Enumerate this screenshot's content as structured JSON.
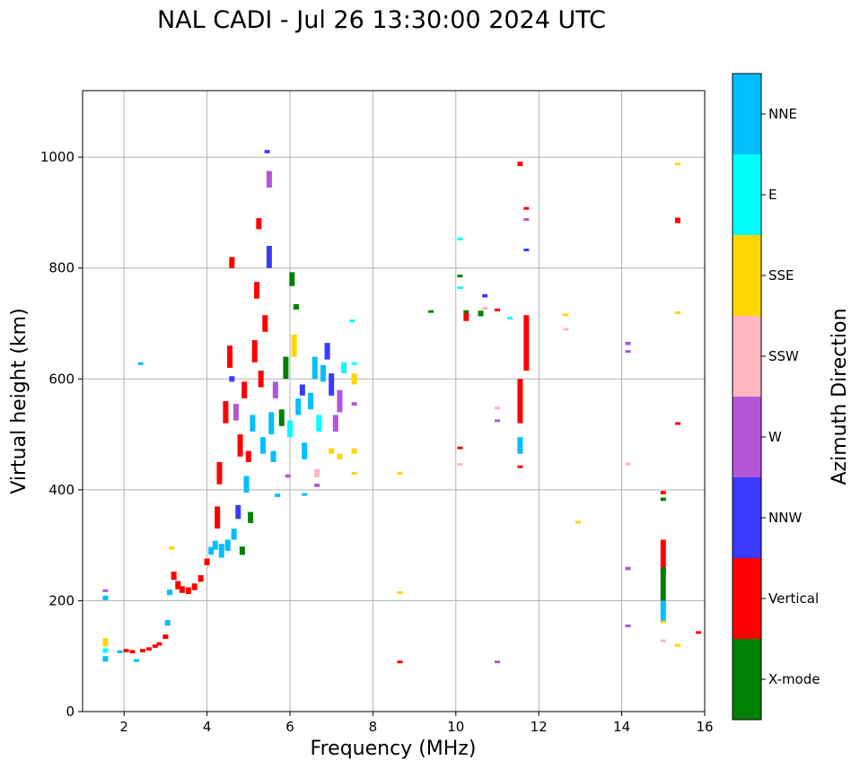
{
  "chart_data": {
    "type": "scatter",
    "title": "NAL CADI - Jul 26 13:30:00 2024 UTC",
    "xlabel": "Frequency (MHz)",
    "ylabel": "Virtual height (km)",
    "xlim": [
      1,
      16
    ],
    "ylim": [
      0,
      1120
    ],
    "xticks": [
      2,
      4,
      6,
      8,
      10,
      12,
      14,
      16
    ],
    "yticks": [
      0,
      200,
      400,
      600,
      800,
      1000
    ],
    "grid": true,
    "colorbar": {
      "title": "Azimuth Direction",
      "categories": [
        {
          "name": "X-mode",
          "color": "#008000"
        },
        {
          "name": "Vertical",
          "color": "#ff0000"
        },
        {
          "name": "NNW",
          "color": "#3a3aff"
        },
        {
          "name": "W",
          "color": "#b355d9"
        },
        {
          "name": "SSW",
          "color": "#ffb6c1"
        },
        {
          "name": "SSE",
          "color": "#ffd700"
        },
        {
          "name": "E",
          "color": "#00ffff"
        },
        {
          "name": "NNE",
          "color": "#00bfff"
        }
      ]
    },
    "segments": [
      {
        "x": 1.55,
        "y": 95,
        "h": 10,
        "dir": "NNE"
      },
      {
        "x": 1.55,
        "y": 110,
        "h": 8,
        "dir": "E"
      },
      {
        "x": 1.55,
        "y": 125,
        "h": 15,
        "dir": "SSE"
      },
      {
        "x": 1.55,
        "y": 205,
        "h": 8,
        "dir": "NNE"
      },
      {
        "x": 1.55,
        "y": 218,
        "h": 5,
        "dir": "W"
      },
      {
        "x": 1.9,
        "y": 108,
        "h": 5,
        "dir": "NNE"
      },
      {
        "x": 2.05,
        "y": 110,
        "h": 6,
        "dir": "Vertical"
      },
      {
        "x": 2.2,
        "y": 108,
        "h": 6,
        "dir": "Vertical"
      },
      {
        "x": 2.3,
        "y": 92,
        "h": 5,
        "dir": "NNE"
      },
      {
        "x": 2.4,
        "y": 628,
        "h": 4,
        "dir": "NNE"
      },
      {
        "x": 2.45,
        "y": 110,
        "h": 6,
        "dir": "Vertical"
      },
      {
        "x": 2.6,
        "y": 113,
        "h": 6,
        "dir": "Vertical"
      },
      {
        "x": 2.75,
        "y": 118,
        "h": 6,
        "dir": "Vertical"
      },
      {
        "x": 2.85,
        "y": 122,
        "h": 6,
        "dir": "Vertical"
      },
      {
        "x": 3.0,
        "y": 135,
        "h": 8,
        "dir": "Vertical"
      },
      {
        "x": 3.05,
        "y": 160,
        "h": 10,
        "dir": "NNE"
      },
      {
        "x": 3.1,
        "y": 215,
        "h": 10,
        "dir": "NNE"
      },
      {
        "x": 3.15,
        "y": 295,
        "h": 6,
        "dir": "SSE"
      },
      {
        "x": 3.2,
        "y": 245,
        "h": 15,
        "dir": "Vertical"
      },
      {
        "x": 3.3,
        "y": 228,
        "h": 15,
        "dir": "Vertical"
      },
      {
        "x": 3.4,
        "y": 220,
        "h": 12,
        "dir": "Vertical"
      },
      {
        "x": 3.55,
        "y": 218,
        "h": 12,
        "dir": "Vertical"
      },
      {
        "x": 3.7,
        "y": 225,
        "h": 12,
        "dir": "Vertical"
      },
      {
        "x": 3.85,
        "y": 240,
        "h": 12,
        "dir": "Vertical"
      },
      {
        "x": 4.0,
        "y": 270,
        "h": 12,
        "dir": "Vertical"
      },
      {
        "x": 4.1,
        "y": 290,
        "h": 14,
        "dir": "NNE"
      },
      {
        "x": 4.2,
        "y": 300,
        "h": 16,
        "dir": "NNE"
      },
      {
        "x": 4.25,
        "y": 350,
        "h": 40,
        "dir": "Vertical"
      },
      {
        "x": 4.3,
        "y": 430,
        "h": 40,
        "dir": "Vertical"
      },
      {
        "x": 4.35,
        "y": 290,
        "h": 25,
        "dir": "NNE"
      },
      {
        "x": 4.45,
        "y": 540,
        "h": 40,
        "dir": "Vertical"
      },
      {
        "x": 4.5,
        "y": 300,
        "h": 20,
        "dir": "NNE"
      },
      {
        "x": 4.55,
        "y": 640,
        "h": 40,
        "dir": "Vertical"
      },
      {
        "x": 4.6,
        "y": 810,
        "h": 20,
        "dir": "Vertical"
      },
      {
        "x": 4.6,
        "y": 600,
        "h": 10,
        "dir": "NNW"
      },
      {
        "x": 4.65,
        "y": 320,
        "h": 20,
        "dir": "NNE"
      },
      {
        "x": 4.7,
        "y": 540,
        "h": 30,
        "dir": "W"
      },
      {
        "x": 4.75,
        "y": 360,
        "h": 25,
        "dir": "NNW"
      },
      {
        "x": 4.8,
        "y": 480,
        "h": 40,
        "dir": "Vertical"
      },
      {
        "x": 4.85,
        "y": 290,
        "h": 15,
        "dir": "X-mode"
      },
      {
        "x": 4.9,
        "y": 580,
        "h": 30,
        "dir": "Vertical"
      },
      {
        "x": 4.95,
        "y": 410,
        "h": 30,
        "dir": "NNE"
      },
      {
        "x": 5.0,
        "y": 460,
        "h": 20,
        "dir": "Vertical"
      },
      {
        "x": 5.05,
        "y": 350,
        "h": 20,
        "dir": "X-mode"
      },
      {
        "x": 5.1,
        "y": 520,
        "h": 30,
        "dir": "NNE"
      },
      {
        "x": 5.15,
        "y": 650,
        "h": 40,
        "dir": "Vertical"
      },
      {
        "x": 5.2,
        "y": 760,
        "h": 30,
        "dir": "Vertical"
      },
      {
        "x": 5.25,
        "y": 880,
        "h": 20,
        "dir": "Vertical"
      },
      {
        "x": 5.3,
        "y": 600,
        "h": 30,
        "dir": "Vertical"
      },
      {
        "x": 5.35,
        "y": 480,
        "h": 30,
        "dir": "NNE"
      },
      {
        "x": 5.4,
        "y": 700,
        "h": 30,
        "dir": "Vertical"
      },
      {
        "x": 5.45,
        "y": 1010,
        "h": 6,
        "dir": "NNW"
      },
      {
        "x": 5.5,
        "y": 960,
        "h": 30,
        "dir": "W"
      },
      {
        "x": 5.5,
        "y": 820,
        "h": 40,
        "dir": "NNW"
      },
      {
        "x": 5.55,
        "y": 520,
        "h": 40,
        "dir": "NNE"
      },
      {
        "x": 5.6,
        "y": 460,
        "h": 20,
        "dir": "NNE"
      },
      {
        "x": 5.65,
        "y": 580,
        "h": 30,
        "dir": "W"
      },
      {
        "x": 5.7,
        "y": 390,
        "h": 6,
        "dir": "NNE"
      },
      {
        "x": 5.8,
        "y": 530,
        "h": 30,
        "dir": "X-mode"
      },
      {
        "x": 5.9,
        "y": 620,
        "h": 40,
        "dir": "X-mode"
      },
      {
        "x": 5.95,
        "y": 425,
        "h": 6,
        "dir": "W"
      },
      {
        "x": 6.0,
        "y": 510,
        "h": 30,
        "dir": "E"
      },
      {
        "x": 6.05,
        "y": 780,
        "h": 25,
        "dir": "X-mode"
      },
      {
        "x": 6.1,
        "y": 660,
        "h": 40,
        "dir": "SSE"
      },
      {
        "x": 6.15,
        "y": 730,
        "h": 10,
        "dir": "X-mode"
      },
      {
        "x": 6.2,
        "y": 550,
        "h": 30,
        "dir": "NNE"
      },
      {
        "x": 6.3,
        "y": 580,
        "h": 20,
        "dir": "NNW"
      },
      {
        "x": 6.35,
        "y": 470,
        "h": 30,
        "dir": "NNE"
      },
      {
        "x": 6.35,
        "y": 392,
        "h": 4,
        "dir": "NNE"
      },
      {
        "x": 6.5,
        "y": 560,
        "h": 30,
        "dir": "NNE"
      },
      {
        "x": 6.6,
        "y": 620,
        "h": 40,
        "dir": "NNE"
      },
      {
        "x": 6.65,
        "y": 430,
        "h": 15,
        "dir": "SSW"
      },
      {
        "x": 6.65,
        "y": 408,
        "h": 6,
        "dir": "W"
      },
      {
        "x": 6.7,
        "y": 520,
        "h": 30,
        "dir": "E"
      },
      {
        "x": 6.8,
        "y": 610,
        "h": 30,
        "dir": "NNE"
      },
      {
        "x": 6.9,
        "y": 650,
        "h": 30,
        "dir": "NNW"
      },
      {
        "x": 7.0,
        "y": 590,
        "h": 40,
        "dir": "NNW"
      },
      {
        "x": 7.0,
        "y": 470,
        "h": 10,
        "dir": "SSE"
      },
      {
        "x": 7.1,
        "y": 520,
        "h": 30,
        "dir": "W"
      },
      {
        "x": 7.2,
        "y": 560,
        "h": 40,
        "dir": "W"
      },
      {
        "x": 7.2,
        "y": 460,
        "h": 10,
        "dir": "SSE"
      },
      {
        "x": 7.3,
        "y": 620,
        "h": 20,
        "dir": "E"
      },
      {
        "x": 7.5,
        "y": 705,
        "h": 4,
        "dir": "E"
      },
      {
        "x": 7.55,
        "y": 600,
        "h": 20,
        "dir": "SSE"
      },
      {
        "x": 7.55,
        "y": 555,
        "h": 6,
        "dir": "W"
      },
      {
        "x": 7.55,
        "y": 470,
        "h": 10,
        "dir": "SSE"
      },
      {
        "x": 7.55,
        "y": 430,
        "h": 4,
        "dir": "SSE"
      },
      {
        "x": 7.55,
        "y": 628,
        "h": 4,
        "dir": "E"
      },
      {
        "x": 8.65,
        "y": 430,
        "h": 4,
        "dir": "SSE"
      },
      {
        "x": 8.65,
        "y": 215,
        "h": 4,
        "dir": "SSE"
      },
      {
        "x": 8.65,
        "y": 90,
        "h": 4,
        "dir": "Vertical"
      },
      {
        "x": 9.4,
        "y": 722,
        "h": 4,
        "dir": "X-mode"
      },
      {
        "x": 10.1,
        "y": 853,
        "h": 4,
        "dir": "E"
      },
      {
        "x": 10.1,
        "y": 786,
        "h": 4,
        "dir": "X-mode"
      },
      {
        "x": 10.1,
        "y": 765,
        "h": 4,
        "dir": "E"
      },
      {
        "x": 10.1,
        "y": 476,
        "h": 4,
        "dir": "Vertical"
      },
      {
        "x": 10.1,
        "y": 446,
        "h": 4,
        "dir": "SSW"
      },
      {
        "x": 10.25,
        "y": 712,
        "h": 15,
        "dir": "Vertical"
      },
      {
        "x": 10.25,
        "y": 722,
        "h": 4,
        "dir": "X-mode"
      },
      {
        "x": 10.6,
        "y": 718,
        "h": 10,
        "dir": "X-mode"
      },
      {
        "x": 10.7,
        "y": 750,
        "h": 6,
        "dir": "NNW"
      },
      {
        "x": 10.7,
        "y": 728,
        "h": 4,
        "dir": "SSW"
      },
      {
        "x": 11.0,
        "y": 725,
        "h": 4,
        "dir": "Vertical"
      },
      {
        "x": 11.0,
        "y": 548,
        "h": 4,
        "dir": "SSW"
      },
      {
        "x": 11.0,
        "y": 525,
        "h": 4,
        "dir": "W"
      },
      {
        "x": 11.0,
        "y": 90,
        "h": 4,
        "dir": "W"
      },
      {
        "x": 11.3,
        "y": 710,
        "h": 4,
        "dir": "E"
      },
      {
        "x": 11.55,
        "y": 988,
        "h": 8,
        "dir": "Vertical"
      },
      {
        "x": 11.55,
        "y": 560,
        "h": 80,
        "dir": "Vertical"
      },
      {
        "x": 11.55,
        "y": 480,
        "h": 30,
        "dir": "NNE"
      },
      {
        "x": 11.55,
        "y": 442,
        "h": 4,
        "dir": "Vertical"
      },
      {
        "x": 11.7,
        "y": 908,
        "h": 4,
        "dir": "Vertical"
      },
      {
        "x": 11.7,
        "y": 888,
        "h": 4,
        "dir": "W"
      },
      {
        "x": 11.7,
        "y": 833,
        "h": 4,
        "dir": "NNW"
      },
      {
        "x": 11.7,
        "y": 665,
        "h": 100,
        "dir": "Vertical"
      },
      {
        "x": 12.65,
        "y": 716,
        "h": 4,
        "dir": "SSE"
      },
      {
        "x": 12.65,
        "y": 690,
        "h": 4,
        "dir": "SSW"
      },
      {
        "x": 12.95,
        "y": 342,
        "h": 4,
        "dir": "SSE"
      },
      {
        "x": 14.15,
        "y": 664,
        "h": 6,
        "dir": "W"
      },
      {
        "x": 14.15,
        "y": 650,
        "h": 4,
        "dir": "W"
      },
      {
        "x": 14.15,
        "y": 447,
        "h": 4,
        "dir": "SSW"
      },
      {
        "x": 14.15,
        "y": 258,
        "h": 6,
        "dir": "W"
      },
      {
        "x": 14.15,
        "y": 155,
        "h": 4,
        "dir": "W"
      },
      {
        "x": 15.0,
        "y": 395,
        "h": 6,
        "dir": "Vertical"
      },
      {
        "x": 15.0,
        "y": 383,
        "h": 6,
        "dir": "X-mode"
      },
      {
        "x": 15.0,
        "y": 280,
        "h": 60,
        "dir": "Vertical"
      },
      {
        "x": 15.0,
        "y": 230,
        "h": 60,
        "dir": "X-mode"
      },
      {
        "x": 15.0,
        "y": 180,
        "h": 40,
        "dir": "NNE"
      },
      {
        "x": 15.0,
        "y": 162,
        "h": 4,
        "dir": "SSE"
      },
      {
        "x": 15.0,
        "y": 128,
        "h": 4,
        "dir": "SSW"
      },
      {
        "x": 15.35,
        "y": 988,
        "h": 4,
        "dir": "SSE"
      },
      {
        "x": 15.35,
        "y": 886,
        "h": 10,
        "dir": "Vertical"
      },
      {
        "x": 15.35,
        "y": 720,
        "h": 4,
        "dir": "SSE"
      },
      {
        "x": 15.35,
        "y": 520,
        "h": 4,
        "dir": "Vertical"
      },
      {
        "x": 15.35,
        "y": 120,
        "h": 4,
        "dir": "SSE"
      },
      {
        "x": 15.85,
        "y": 143,
        "h": 4,
        "dir": "Vertical"
      }
    ]
  }
}
